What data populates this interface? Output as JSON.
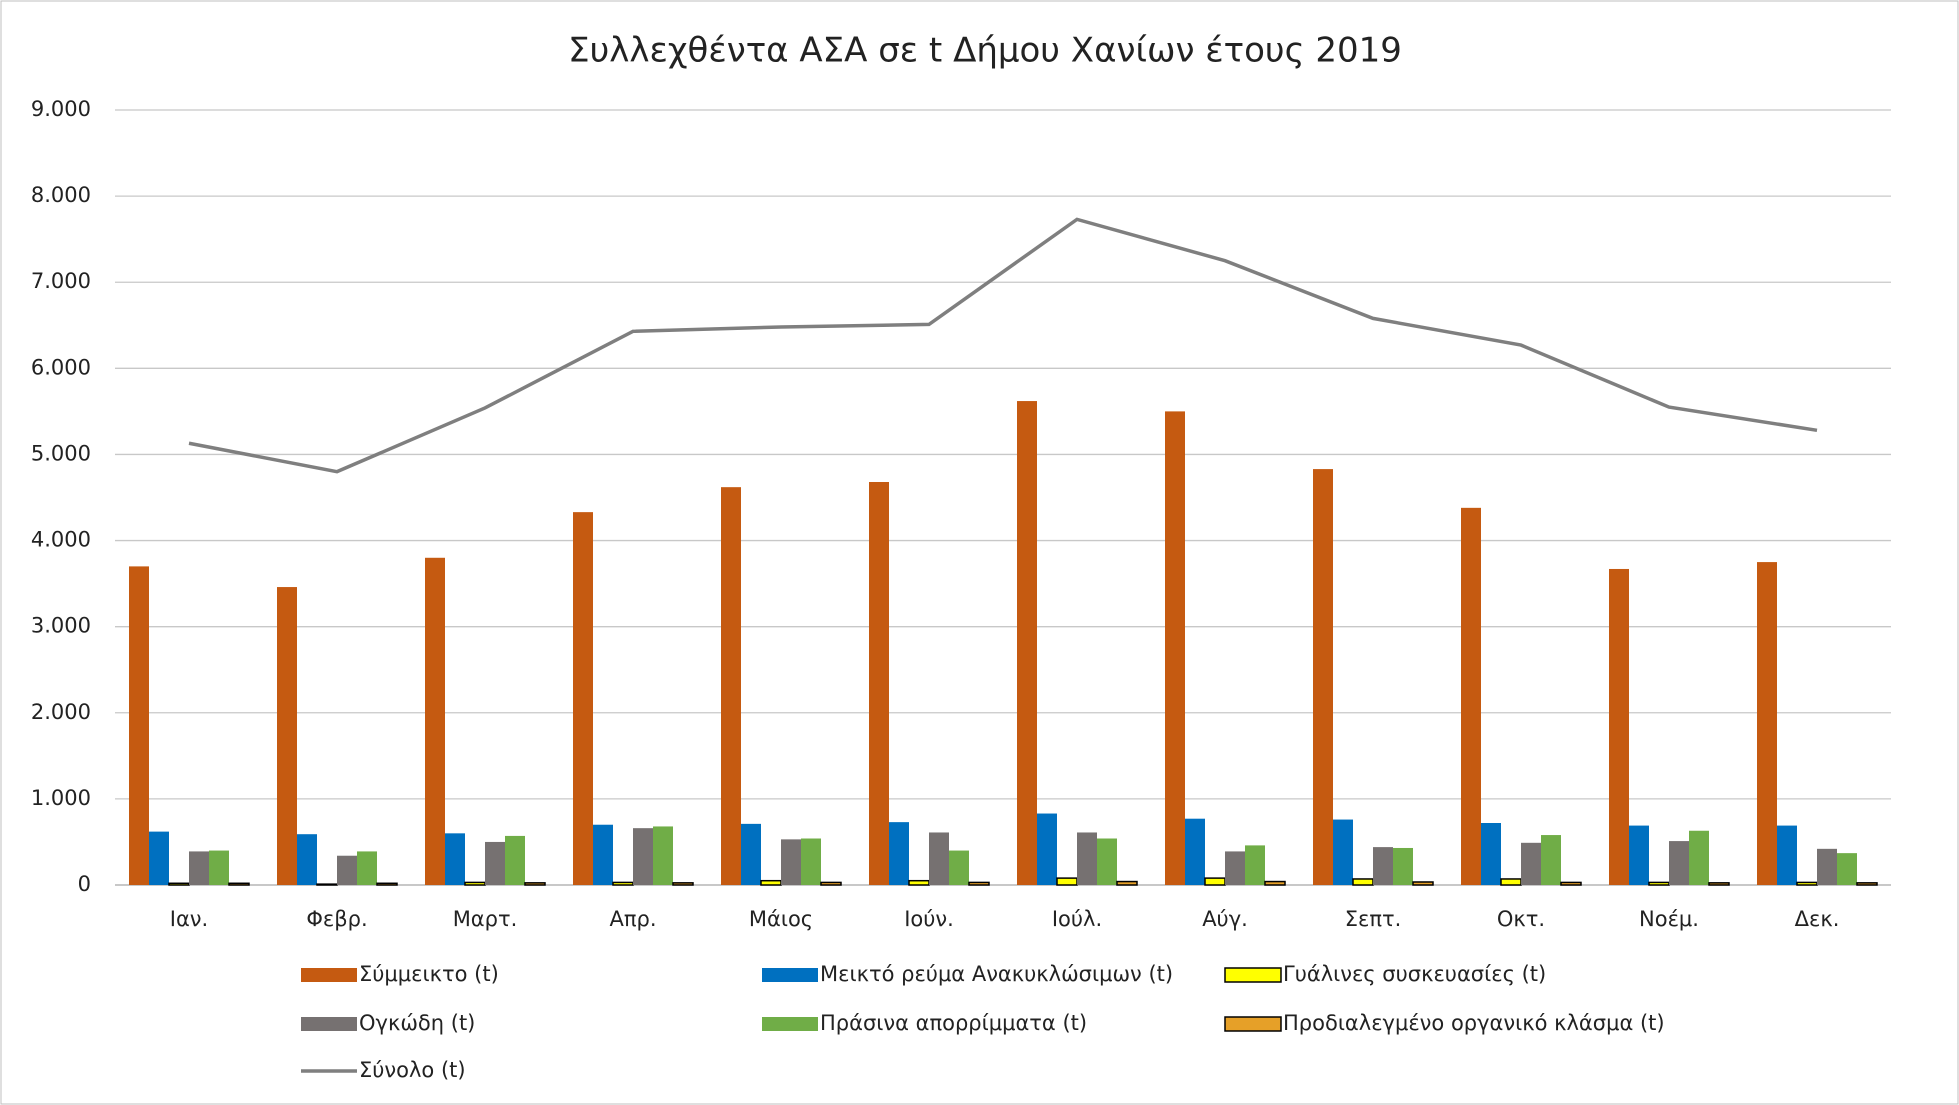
{
  "chart_data": {
    "type": "bar",
    "title": "Συλλεχθέντα ΑΣΑ σε t Δήμου Χανίων έτους 2019",
    "categories": [
      "Ιαν.",
      "Φεβρ.",
      "Μαρτ.",
      "Απρ.",
      "Μάιος",
      "Ιούν.",
      "Ιούλ.",
      "Αύγ.",
      "Σεπτ.",
      "Οκτ.",
      "Νοέμ.",
      "Δεκ."
    ],
    "series": [
      {
        "name": "Σύμμεικτο (t)",
        "color": "#c55a11",
        "values": [
          3700,
          3460,
          3800,
          4330,
          4620,
          4680,
          5620,
          5500,
          4830,
          4380,
          3670,
          3750
        ]
      },
      {
        "name": "Μεικτό ρεύμα Ανακυκλώσιμων (t)",
        "color": "#0070c0",
        "values": [
          620,
          590,
          600,
          700,
          710,
          730,
          830,
          770,
          760,
          720,
          690,
          690
        ]
      },
      {
        "name": "Γυάλινες συσκευασίες (t)",
        "color": "#ffff00",
        "edgecolor": "#000000",
        "values": [
          20,
          10,
          30,
          30,
          50,
          50,
          80,
          80,
          70,
          70,
          30,
          30
        ]
      },
      {
        "name": "Ογκώδη (t)",
        "color": "#767171",
        "values": [
          390,
          340,
          500,
          660,
          530,
          610,
          610,
          390,
          440,
          490,
          510,
          420
        ]
      },
      {
        "name": "Πράσινα απορρίμματα (t)",
        "color": "#70ad47",
        "values": [
          400,
          390,
          570,
          680,
          540,
          400,
          540,
          460,
          430,
          580,
          630,
          370
        ]
      },
      {
        "name": "Προδιαλεγμένο οργανικό κλάσμα (t)",
        "color": "#e6a028",
        "edgecolor": "#000000",
        "values": [
          20,
          20,
          25,
          25,
          30,
          30,
          40,
          40,
          35,
          30,
          25,
          25
        ]
      },
      {
        "name": "Σύνολο (t)",
        "color": "#7f7f7f",
        "type": "line",
        "values": [
          5130,
          4800,
          5540,
          6430,
          6480,
          6510,
          7730,
          7250,
          6580,
          6270,
          5550,
          5280
        ]
      }
    ],
    "ylim": [
      0,
      9000
    ],
    "yticks": [
      0,
      {
        "value": 1000,
        "label": "1.000"
      },
      {
        "value": 2000,
        "label": "2.000"
      },
      {
        "value": 3000,
        "label": "3.000"
      },
      {
        "value": 4000,
        "label": "4.000"
      },
      {
        "value": 5000,
        "label": "5.000"
      },
      {
        "value": 6000,
        "label": "6.000"
      },
      {
        "value": 7000,
        "label": "7.000"
      },
      {
        "value": 8000,
        "label": "8.000"
      },
      {
        "value": 9000,
        "label": "9.000"
      }
    ],
    "grid": true,
    "legend": "bottom"
  }
}
